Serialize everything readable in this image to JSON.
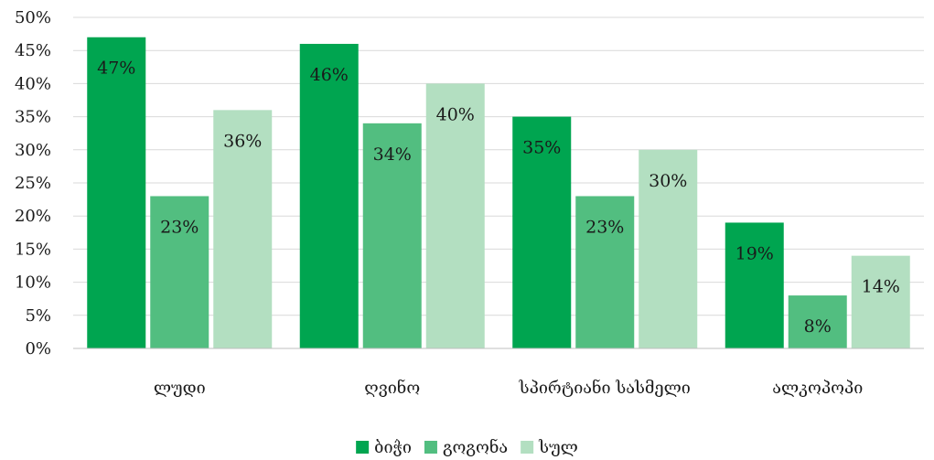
{
  "chart_data": {
    "type": "bar",
    "categories": [
      "ლუდი",
      "ღვინო",
      "სპირტიანი სასმელი",
      "ალკოპოპი"
    ],
    "series": [
      {
        "name": "ბიჭი",
        "values": [
          47,
          46,
          35,
          19
        ],
        "color": "#00a550"
      },
      {
        "name": "გოგონა",
        "values": [
          23,
          34,
          23,
          8
        ],
        "color": "#52be80"
      },
      {
        "name": "სულ",
        "values": [
          36,
          40,
          30,
          14
        ],
        "color": "#b3dfc1"
      }
    ],
    "data_labels": [
      [
        "47%",
        "46%",
        "35%",
        "19%"
      ],
      [
        "23%",
        "34%",
        "23%",
        "8%"
      ],
      [
        "36%",
        "40%",
        "30%",
        "14%"
      ]
    ],
    "y_ticks": [
      "0%",
      "5%",
      "10%",
      "15%",
      "20%",
      "25%",
      "30%",
      "35%",
      "40%",
      "45%",
      "50%"
    ],
    "ylim": [
      0,
      50
    ],
    "grid": true,
    "legend_position": "bottom"
  }
}
